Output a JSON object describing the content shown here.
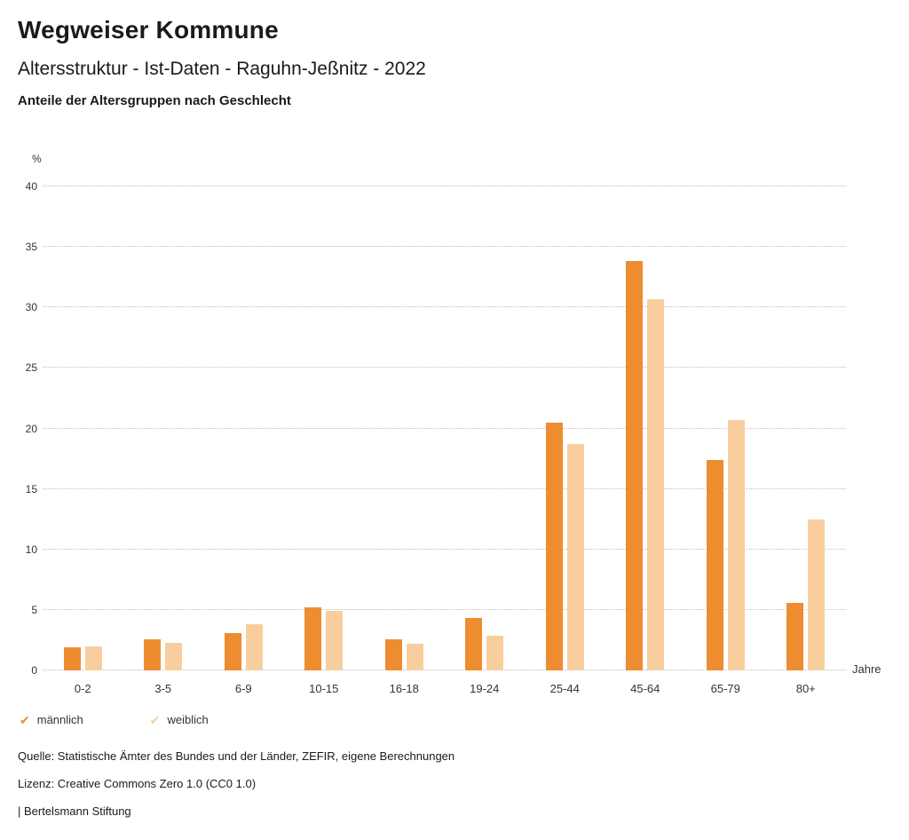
{
  "header": {
    "title": "Wegweiser Kommune",
    "subtitle": "Altersstruktur - Ist-Daten - Raguhn-Jeßnitz - 2022",
    "chart_heading": "Anteile der Altersgruppen nach Geschlecht"
  },
  "chart_data": {
    "type": "bar",
    "title": "Anteile der Altersgruppen nach Geschlecht",
    "categories": [
      "0-2",
      "3-5",
      "6-9",
      "10-15",
      "16-18",
      "19-24",
      "25-44",
      "45-64",
      "65-79",
      "80+"
    ],
    "series": [
      {
        "name": "männlich",
        "color": "#EE8C30",
        "values": [
          1.9,
          2.6,
          3.1,
          5.2,
          2.6,
          4.3,
          20.5,
          33.8,
          17.4,
          5.6
        ]
      },
      {
        "name": "weiblich",
        "color": "#F8CE9F",
        "values": [
          2.0,
          2.3,
          3.8,
          4.9,
          2.2,
          2.9,
          18.7,
          30.7,
          20.7,
          12.5
        ]
      }
    ],
    "ylabel": "%",
    "xlabel": "Jahre",
    "ylim": [
      0,
      40
    ],
    "ytick_interval": 5,
    "grid": "dotted-horizontal",
    "legend_position": "bottom-left"
  },
  "axes": {
    "y_unit": "%",
    "x_unit": "Jahre",
    "y_ticks": [
      0,
      5,
      10,
      15,
      20,
      25,
      30,
      35,
      40
    ]
  },
  "legend": {
    "items": [
      {
        "label": "männlich",
        "color": "#EE8C30"
      },
      {
        "label": "weiblich",
        "color": "#F8CE9F"
      }
    ]
  },
  "footer": {
    "source": "Quelle: Statistische Ämter des Bundes und der Länder, ZEFIR, eigene Berechnungen",
    "license": "Lizenz: Creative Commons Zero 1.0 (CC0 1.0)",
    "attribution": "| Bertelsmann Stiftung"
  }
}
